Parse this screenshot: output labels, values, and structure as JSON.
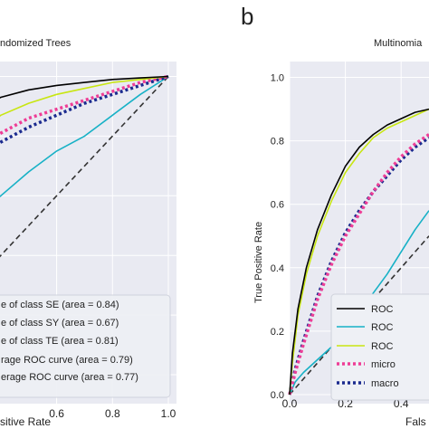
{
  "panel_letter": "b",
  "colors": {
    "background": "#e9eaf2",
    "grid": "#ffffff",
    "black": "#000000",
    "cyan": "#17b1c6",
    "yellowgreen": "#c8e612",
    "magenta": "#ee3d96",
    "navy": "#1b2b8f",
    "diagonal": "#333333"
  },
  "chart_data": [
    {
      "type": "line",
      "title": "ndomized Trees",
      "xlabel": "sitive Rate",
      "ylabel": "",
      "xlim": [
        0.3,
        1.0
      ],
      "ylim": [
        -0.1,
        1.05
      ],
      "xticks": [
        "0.6",
        "0.8",
        "1.0"
      ],
      "grid": true,
      "legend_placement": "lower-right",
      "legend": [
        "e of class SE (area = 0.84)",
        "e of class SY (area = 0.67)",
        "e of class TE (area = 0.81)",
        "rage ROC curve (area = 0.79)",
        "erage ROC curve (area = 0.77)"
      ],
      "series": [
        {
          "name": "e of class SE (area = 0.84)",
          "color": "black",
          "style": "solid",
          "x": [
            0.3,
            0.4,
            0.5,
            0.6,
            0.7,
            0.8,
            0.9,
            1.0
          ],
          "y": [
            0.88,
            0.93,
            0.955,
            0.97,
            0.98,
            0.99,
            0.995,
            1.0
          ]
        },
        {
          "name": "e of class SY (area = 0.67)",
          "color": "cyan",
          "style": "solid",
          "x": [
            0.3,
            0.4,
            0.5,
            0.6,
            0.7,
            0.8,
            0.9,
            1.0
          ],
          "y": [
            0.53,
            0.6,
            0.68,
            0.75,
            0.8,
            0.87,
            0.94,
            1.0
          ]
        },
        {
          "name": "e of class TE (area = 0.81)",
          "color": "yellowgreen",
          "style": "solid",
          "x": [
            0.3,
            0.4,
            0.5,
            0.6,
            0.7,
            0.8,
            0.9,
            1.0
          ],
          "y": [
            0.8,
            0.87,
            0.91,
            0.94,
            0.96,
            0.98,
            0.99,
            1.0
          ]
        },
        {
          "name": "rage ROC curve (area = 0.79)",
          "color": "magenta",
          "style": "dotted",
          "x": [
            0.3,
            0.4,
            0.5,
            0.6,
            0.7,
            0.8,
            0.9,
            1.0
          ],
          "y": [
            0.75,
            0.81,
            0.86,
            0.89,
            0.92,
            0.95,
            0.98,
            1.0
          ]
        },
        {
          "name": "erage ROC curve (area = 0.77)",
          "color": "navy",
          "style": "dotted",
          "x": [
            0.3,
            0.4,
            0.5,
            0.6,
            0.7,
            0.8,
            0.9,
            1.0
          ],
          "y": [
            0.72,
            0.78,
            0.83,
            0.87,
            0.91,
            0.94,
            0.97,
            1.0
          ]
        },
        {
          "name": "",
          "color": "diagonal",
          "style": "dashed",
          "x": [
            0.3,
            1.0
          ],
          "y": [
            0.3,
            1.0
          ]
        }
      ]
    },
    {
      "type": "line",
      "title": "Multinomia",
      "xlabel": "Fals",
      "ylabel": "True Positive Rate",
      "xlim": [
        0.0,
        0.5
      ],
      "ylim": [
        0.0,
        1.05
      ],
      "xticks": [
        "0.0",
        "0.2",
        "0.4"
      ],
      "yticks": [
        "0.0",
        "0.2",
        "0.4",
        "0.6",
        "0.8",
        "1.0"
      ],
      "grid": true,
      "legend_placement": "lower-right",
      "legend": [
        "ROC",
        "ROC",
        "ROC",
        "micro",
        "macro"
      ],
      "series": [
        {
          "name": "ROC",
          "color": "black",
          "style": "solid",
          "x": [
            0.0,
            0.01,
            0.03,
            0.06,
            0.1,
            0.15,
            0.2,
            0.25,
            0.3,
            0.35,
            0.4,
            0.45,
            0.5
          ],
          "y": [
            0.0,
            0.13,
            0.27,
            0.4,
            0.52,
            0.63,
            0.72,
            0.78,
            0.82,
            0.85,
            0.87,
            0.89,
            0.9
          ]
        },
        {
          "name": "ROC",
          "color": "cyan",
          "style": "solid",
          "x": [
            0.0,
            0.02,
            0.05,
            0.1,
            0.15,
            0.2,
            0.25,
            0.3,
            0.35,
            0.4,
            0.45,
            0.5
          ],
          "y": [
            0.0,
            0.04,
            0.07,
            0.11,
            0.15,
            0.2,
            0.26,
            0.32,
            0.38,
            0.45,
            0.52,
            0.58
          ]
        },
        {
          "name": "ROC",
          "color": "yellowgreen",
          "style": "solid",
          "x": [
            0.0,
            0.01,
            0.03,
            0.06,
            0.1,
            0.15,
            0.2,
            0.25,
            0.3,
            0.35,
            0.4,
            0.45,
            0.5
          ],
          "y": [
            0.0,
            0.1,
            0.25,
            0.38,
            0.5,
            0.61,
            0.7,
            0.76,
            0.81,
            0.84,
            0.86,
            0.88,
            0.9
          ]
        },
        {
          "name": "micro",
          "color": "magenta",
          "style": "dotted",
          "x": [
            0.0,
            0.02,
            0.05,
            0.1,
            0.15,
            0.2,
            0.25,
            0.3,
            0.35,
            0.4,
            0.45,
            0.5
          ],
          "y": [
            0.0,
            0.07,
            0.16,
            0.3,
            0.41,
            0.5,
            0.57,
            0.64,
            0.7,
            0.75,
            0.79,
            0.82
          ]
        },
        {
          "name": "macro",
          "color": "navy",
          "style": "dotted",
          "x": [
            0.0,
            0.02,
            0.05,
            0.1,
            0.15,
            0.2,
            0.25,
            0.3,
            0.35,
            0.4,
            0.45,
            0.5
          ],
          "y": [
            0.0,
            0.08,
            0.17,
            0.31,
            0.42,
            0.51,
            0.58,
            0.64,
            0.69,
            0.74,
            0.78,
            0.81
          ]
        },
        {
          "name": "",
          "color": "diagonal",
          "style": "dashed",
          "x": [
            0.0,
            0.5
          ],
          "y": [
            0.0,
            0.5
          ]
        }
      ]
    }
  ]
}
